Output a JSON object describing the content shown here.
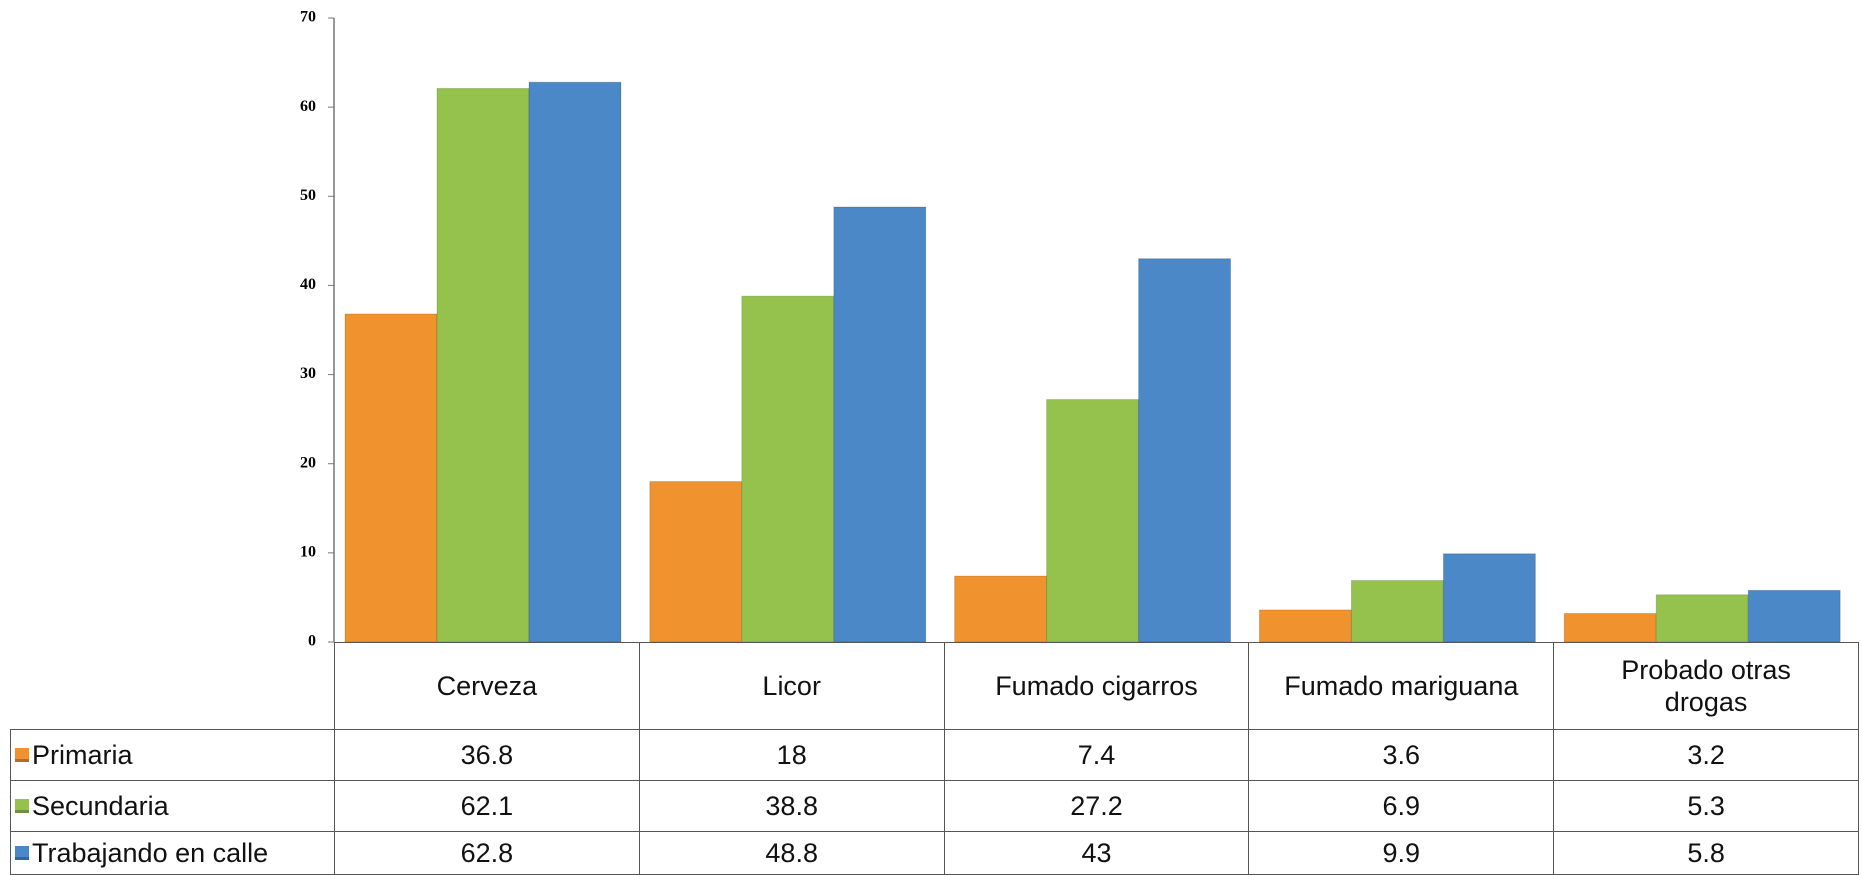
{
  "chart_data": {
    "type": "bar",
    "categories": [
      "Cerveza",
      "Licor",
      "Fumado cigarros",
      "Fumado mariguana",
      "Probado otras drogas"
    ],
    "series": [
      {
        "name": "Primaria",
        "color": "#f0922e",
        "values": [
          36.8,
          18,
          7.4,
          3.6,
          3.2
        ]
      },
      {
        "name": "Secundaria",
        "color": "#95c24c",
        "values": [
          62.1,
          38.8,
          27.2,
          6.9,
          5.3
        ]
      },
      {
        "name": "Trabajando en calle",
        "color": "#4a88c8",
        "values": [
          62.8,
          48.8,
          43,
          9.9,
          5.8
        ]
      }
    ],
    "ylim": [
      0,
      70
    ],
    "yticks": [
      0,
      10,
      20,
      30,
      40,
      50,
      60,
      70
    ],
    "grid": false
  }
}
